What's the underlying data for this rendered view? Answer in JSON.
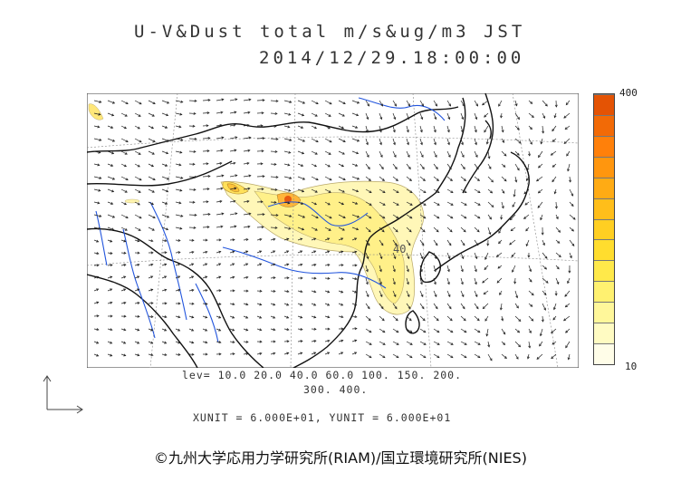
{
  "title": {
    "line1": "U-V&Dust total m/s&ug/m3 JST",
    "line2": "2014/12/29.18:00:00"
  },
  "colorbar": {
    "max_label": "400",
    "min_label": "10",
    "colors": [
      "#fffde8",
      "#fffbc2",
      "#fff79a",
      "#fff170",
      "#ffe94a",
      "#ffdd2e",
      "#ffcf22",
      "#ffbe1a",
      "#ffab14",
      "#ff960e",
      "#ff800a",
      "#f26a06",
      "#e45304"
    ]
  },
  "levels": {
    "line1": "lev= 10.0 20.0 40.0 60.0 100. 150. 200.",
    "line2": "300. 400."
  },
  "units": {
    "text": "XUNIT = 6.000E+01, YUNIT = 6.000E+01"
  },
  "map_labels": {
    "contour_label": "40"
  },
  "colors": {
    "coastline": "#111111",
    "rivers": "#2255dd",
    "vectors": "#222222",
    "grid": "#888888"
  },
  "credit": "©九州大学応用力学研究所(RIAM)/国立環境研究所(NIES)"
}
